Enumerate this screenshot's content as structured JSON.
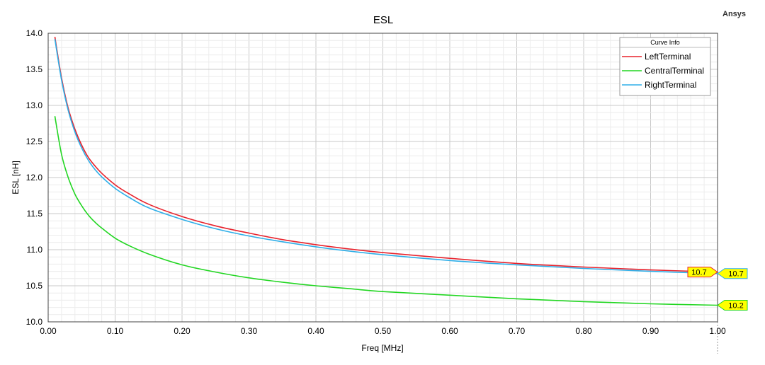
{
  "brand": "Ansys",
  "legend": {
    "title": "Curve Info"
  },
  "chart_data": {
    "type": "line",
    "title": "ESL",
    "xlabel": "Freq [MHz]",
    "ylabel": "ESL [nH]",
    "xlim": [
      0.0,
      1.0
    ],
    "ylim": [
      10.0,
      14.0
    ],
    "x_ticks": [
      "0.00",
      "0.10",
      "0.20",
      "0.30",
      "0.40",
      "0.50",
      "0.60",
      "0.70",
      "0.80",
      "0.90",
      "1.00"
    ],
    "y_ticks": [
      "10.0",
      "10.5",
      "11.0",
      "11.5",
      "12.0",
      "12.5",
      "13.0",
      "13.5",
      "14.0"
    ],
    "grid": true,
    "legend_position": "top-right",
    "series": [
      {
        "name": "LeftTerminal",
        "color": "#e8222c",
        "x": [
          0.01,
          0.02,
          0.03,
          0.04,
          0.05,
          0.06,
          0.07,
          0.08,
          0.1,
          0.12,
          0.15,
          0.2,
          0.25,
          0.3,
          0.35,
          0.4,
          0.45,
          0.5,
          0.6,
          0.7,
          0.8,
          0.9,
          1.0
        ],
        "values": [
          13.95,
          13.38,
          12.96,
          12.67,
          12.45,
          12.28,
          12.16,
          12.06,
          11.9,
          11.78,
          11.63,
          11.46,
          11.33,
          11.23,
          11.14,
          11.07,
          11.01,
          10.96,
          10.88,
          10.81,
          10.76,
          10.72,
          10.69
        ]
      },
      {
        "name": "CentralTerminal",
        "color": "#22d622",
        "x": [
          0.01,
          0.02,
          0.03,
          0.04,
          0.05,
          0.06,
          0.07,
          0.08,
          0.1,
          0.12,
          0.15,
          0.2,
          0.25,
          0.3,
          0.35,
          0.4,
          0.45,
          0.5,
          0.6,
          0.7,
          0.8,
          0.9,
          1.0
        ],
        "values": [
          12.85,
          12.32,
          12.0,
          11.77,
          11.61,
          11.48,
          11.38,
          11.3,
          11.16,
          11.06,
          10.94,
          10.79,
          10.69,
          10.61,
          10.55,
          10.5,
          10.46,
          10.42,
          10.37,
          10.32,
          10.28,
          10.25,
          10.23
        ]
      },
      {
        "name": "RightTerminal",
        "color": "#2eaee8",
        "x": [
          0.01,
          0.02,
          0.03,
          0.04,
          0.05,
          0.06,
          0.07,
          0.08,
          0.1,
          0.12,
          0.15,
          0.2,
          0.25,
          0.3,
          0.35,
          0.4,
          0.45,
          0.5,
          0.6,
          0.7,
          0.8,
          0.9,
          1.0
        ],
        "values": [
          13.92,
          13.35,
          12.93,
          12.63,
          12.41,
          12.24,
          12.11,
          12.01,
          11.85,
          11.73,
          11.58,
          11.42,
          11.29,
          11.19,
          11.11,
          11.04,
          10.98,
          10.93,
          10.85,
          10.79,
          10.74,
          10.7,
          10.67
        ]
      }
    ],
    "markers": [
      {
        "label": "10.7",
        "series": "LeftTerminal",
        "x": 1.0,
        "y": 10.69,
        "side": "left"
      },
      {
        "label": "10.7",
        "series": "RightTerminal",
        "x": 1.0,
        "y": 10.67,
        "side": "right"
      },
      {
        "label": "10.2",
        "series": "CentralTerminal",
        "x": 1.0,
        "y": 10.23,
        "side": "right"
      }
    ]
  }
}
